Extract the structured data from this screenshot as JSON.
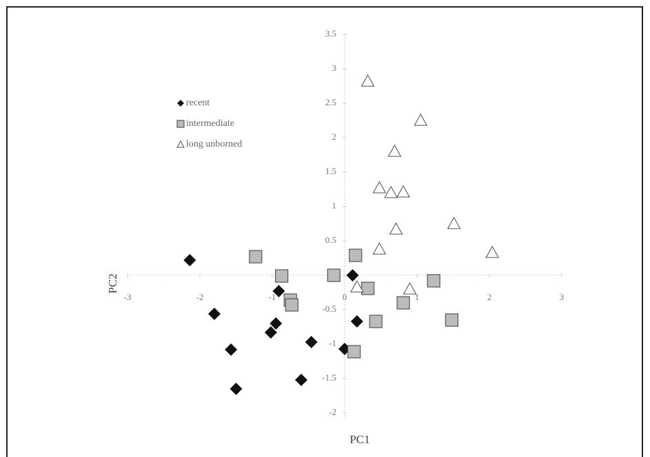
{
  "chart_data": {
    "type": "scatter",
    "x_label": "PC1",
    "y_label": "PC2",
    "xlim": [
      -3,
      3
    ],
    "ylim": [
      -2,
      3.5
    ],
    "xticks": [
      -3,
      -2,
      -1,
      0,
      1,
      2,
      3
    ],
    "yticks": [
      -2,
      -1.5,
      -1,
      -0.5,
      0.5,
      1,
      1.5,
      2,
      2.5,
      3,
      3.5
    ],
    "legend": "upper left",
    "series": [
      {
        "name": "recent",
        "marker": "diamond",
        "color": "#111111",
        "x": [
          -2.14,
          -1.8,
          -1.57,
          -1.5,
          -0.91,
          -0.95,
          -1.02,
          -0.46,
          -0.6,
          0.0,
          0.11,
          0.17
        ],
        "values": [
          0.22,
          -0.56,
          -1.08,
          -1.65,
          -0.23,
          -0.7,
          -0.83,
          -0.97,
          -1.52,
          -1.07,
          0.0,
          -0.67
        ]
      },
      {
        "name": "intermediate",
        "marker": "square",
        "color": "#bbbbbb",
        "x": [
          -1.23,
          -0.87,
          -0.75,
          -0.73,
          -0.15,
          0.15,
          0.32,
          0.43,
          0.81,
          1.23,
          1.48,
          0.13
        ],
        "values": [
          0.27,
          -0.01,
          -0.36,
          -0.43,
          0.0,
          0.29,
          -0.19,
          -0.67,
          -0.4,
          -0.08,
          -0.65,
          -1.11
        ]
      },
      {
        "name": "long unborned",
        "marker": "triangle",
        "color": "#ffffff",
        "x": [
          0.32,
          1.05,
          0.69,
          0.48,
          0.64,
          0.81,
          0.71,
          0.48,
          1.51,
          2.04,
          0.17,
          0.9
        ],
        "values": [
          2.82,
          2.25,
          1.8,
          1.27,
          1.2,
          1.21,
          0.67,
          0.38,
          0.75,
          0.33,
          -0.17,
          -0.2
        ]
      }
    ]
  }
}
